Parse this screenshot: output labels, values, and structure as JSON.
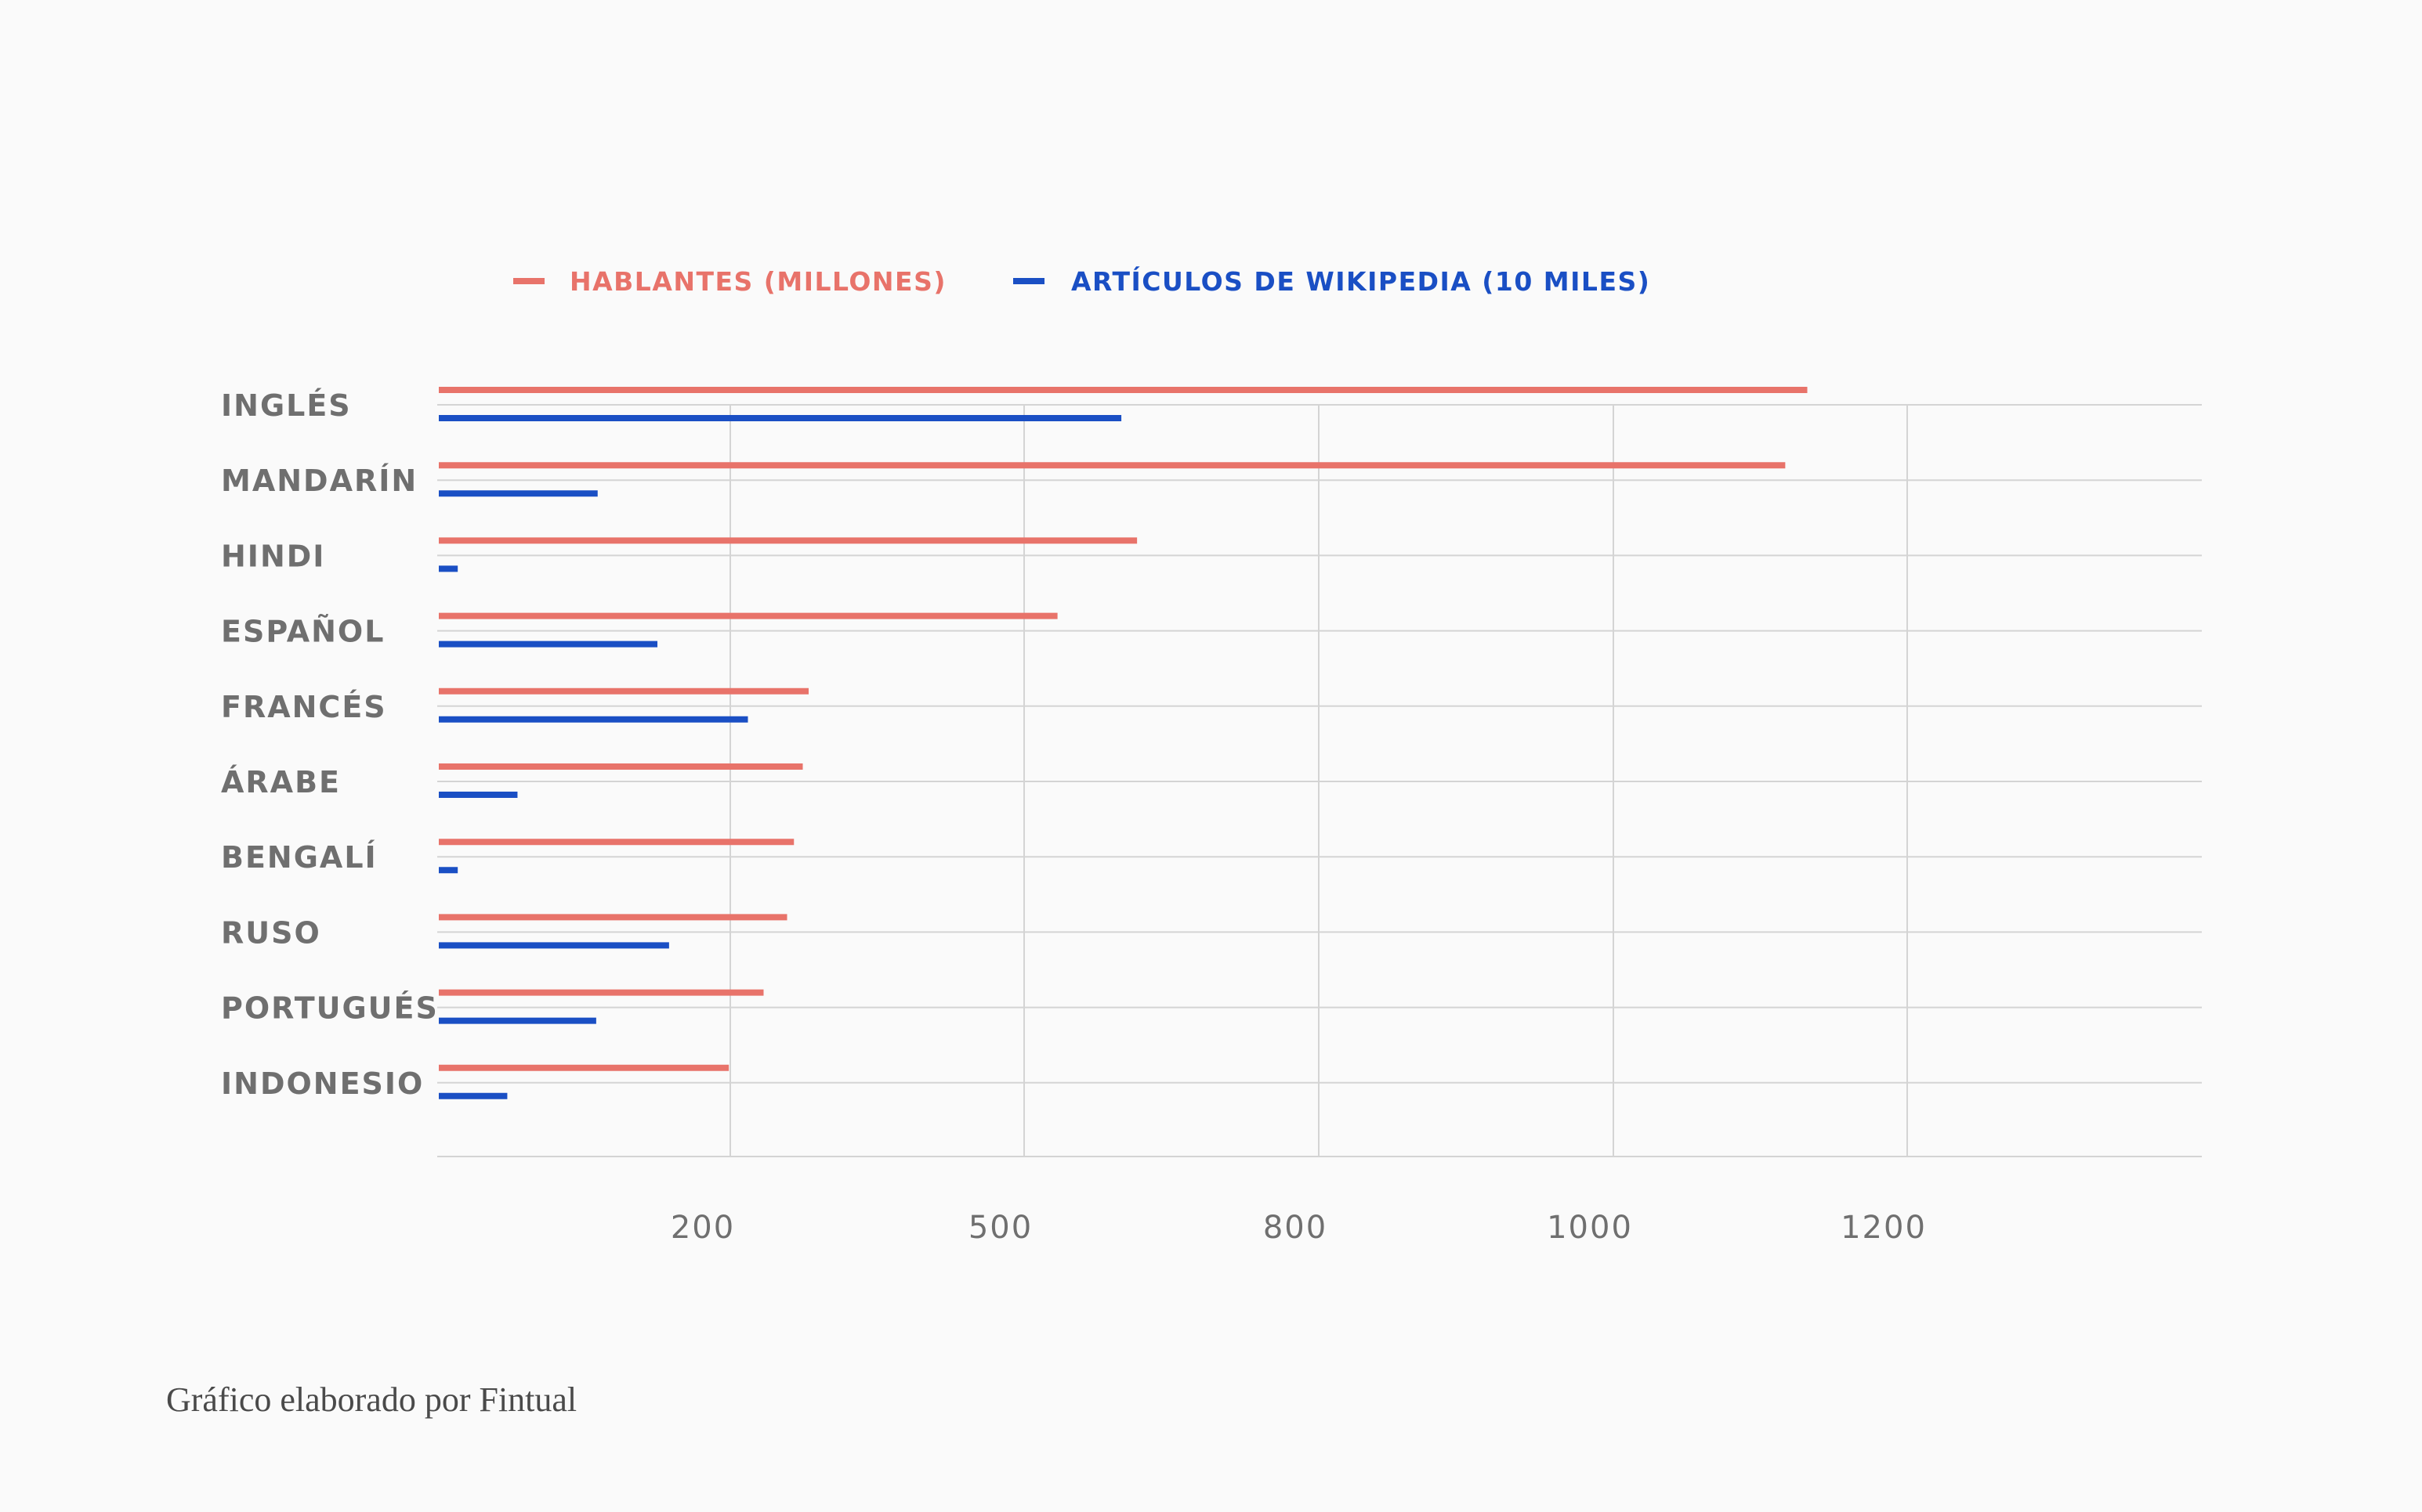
{
  "chart_data": {
    "type": "bar",
    "orientation": "horizontal",
    "categories": [
      "INGLÉS",
      "MANDARÍN",
      "HINDI",
      "ESPAÑOL",
      "FRANCÉS",
      "ÁRABE",
      "BENGALÍ",
      "RUSO",
      "PORTUGUÉS",
      "INDONESIO"
    ],
    "series": [
      {
        "name": "HABLANTES (MILLONES)",
        "color": "#e8736a",
        "values": [
          1132,
          1117,
          615,
          534,
          280,
          274,
          265,
          258,
          234,
          199
        ]
      },
      {
        "name": "ARTÍCULOS DE WIKIPEDIA (10 MILES)",
        "color": "#1a4fc4",
        "values": [
          599,
          109,
          13,
          150,
          218,
          54,
          13,
          158,
          108,
          47
        ]
      }
    ],
    "x_ticks": [
      "200",
      "500",
      "800",
      "1000",
      "1200"
    ],
    "legend_position": "top",
    "grid": true
  },
  "footer": {
    "credit": "Gráfico elaborado por Fintual"
  }
}
